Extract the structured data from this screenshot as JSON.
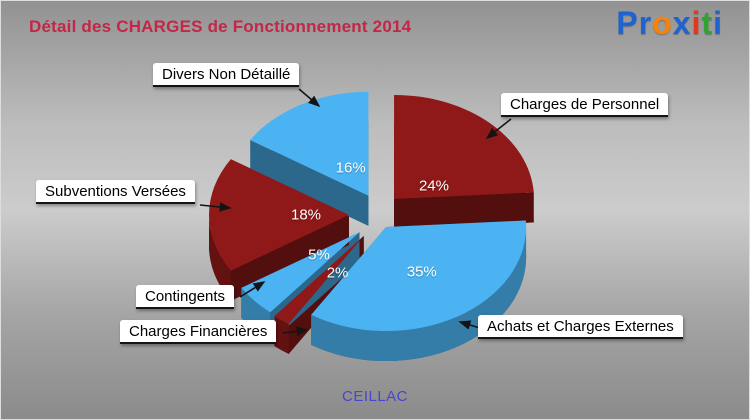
{
  "header": {
    "title": "Détail des CHARGES de Fonctionnement 2014",
    "title_color": "#c42647",
    "logo_letters": [
      {
        "ch": "P",
        "color": "#1e63d0"
      },
      {
        "ch": "r",
        "color": "#1e63d0"
      },
      {
        "ch": "o",
        "color": "#f5820b"
      },
      {
        "ch": "x",
        "color": "#1e63d0"
      },
      {
        "ch": "i",
        "color": "#e03a1a"
      },
      {
        "ch": "t",
        "color": "#31a331"
      },
      {
        "ch": "i",
        "color": "#1e63d0"
      }
    ]
  },
  "footer": {
    "municipality": "CEILLAC",
    "color": "#4646d0"
  },
  "chart_data": {
    "type": "pie",
    "style": "3d-exploded",
    "title": "Détail des CHARGES de Fonctionnement 2014",
    "subtitle": "CEILLAC",
    "unit": "%",
    "direction": "clockwise",
    "start_angle_deg": 0,
    "legend_position": "callout-labels",
    "slices": [
      {
        "label": "Charges de Personnel",
        "value": 24,
        "color": "#8f1818"
      },
      {
        "label": "Achats et Charges Externes",
        "value": 35,
        "color": "#4bb3f2"
      },
      {
        "label": "Charges Financières",
        "value": 2,
        "color": "#8f1818"
      },
      {
        "label": "Contingents",
        "value": 5,
        "color": "#4bb3f2"
      },
      {
        "label": "Subventions Versées",
        "value": 18,
        "color": "#8f1818"
      },
      {
        "label": "Divers Non Détaillé",
        "value": 16,
        "color": "#4bb3f2"
      }
    ]
  }
}
